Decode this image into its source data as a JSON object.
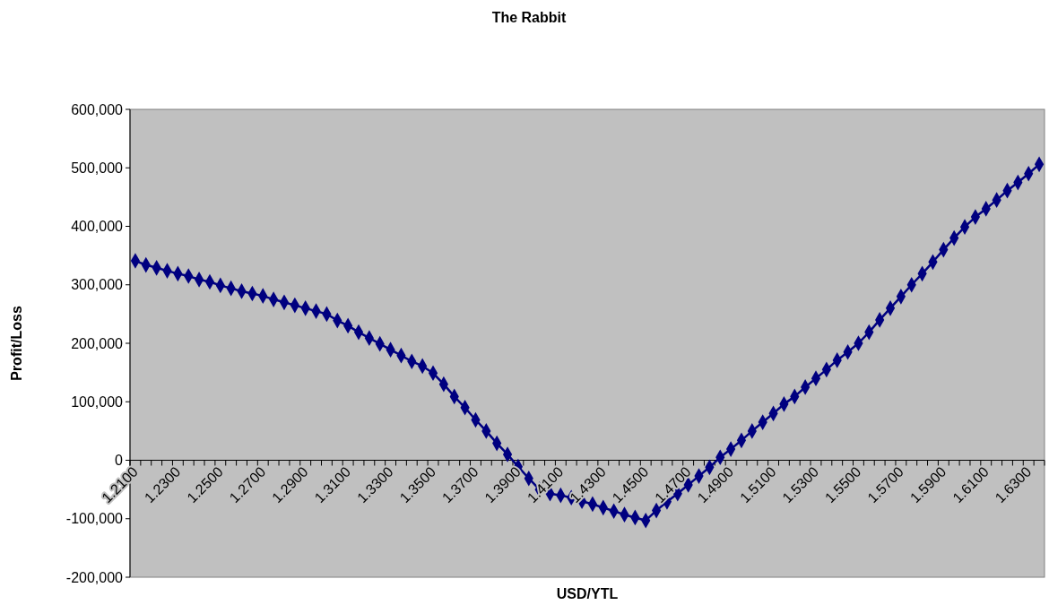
{
  "chart_data": {
    "type": "line",
    "title": "The Rabbit",
    "xlabel": "USD/YTL",
    "ylabel": "Profit/Loss",
    "categories": [
      "1.2100",
      null,
      null,
      null,
      "1.2300",
      null,
      null,
      null,
      "1.2500",
      null,
      null,
      null,
      "1.2700",
      null,
      null,
      null,
      "1.2900",
      null,
      null,
      null,
      "1.3100",
      null,
      null,
      null,
      "1.3300",
      null,
      null,
      null,
      "1.3500",
      null,
      null,
      null,
      "1.3700",
      null,
      null,
      null,
      "1.3900",
      null,
      null,
      null,
      "1.4100",
      null,
      null,
      null,
      "1.4300",
      null,
      null,
      null,
      "1.4500",
      null,
      null,
      null,
      "1.4700",
      null,
      null,
      null,
      "1.4900",
      null,
      null,
      null,
      "1.5100",
      null,
      null,
      null,
      "1.5300",
      null,
      null,
      null,
      "1.5500",
      null,
      null,
      null,
      "1.5700",
      null,
      null,
      null,
      "1.5900",
      null,
      null,
      null,
      "1.6100",
      null,
      null,
      null,
      "1.6300",
      null
    ],
    "series": [
      {
        "color": "#000080",
        "values": [
          341000,
          334000,
          329000,
          324000,
          319000,
          315000,
          309000,
          305000,
          299000,
          294000,
          289000,
          285000,
          281000,
          275000,
          270000,
          265000,
          260000,
          255000,
          250000,
          239000,
          230000,
          219000,
          209000,
          199000,
          189000,
          179000,
          169000,
          161000,
          149000,
          130000,
          109000,
          90000,
          69000,
          50000,
          29000,
          10000,
          -11000,
          -31000,
          -50000,
          -57000,
          -60000,
          -64000,
          -70000,
          -75000,
          -81000,
          -87000,
          -93000,
          -98000,
          -103000,
          -86000,
          -71000,
          -57000,
          -42000,
          -27000,
          -12000,
          5000,
          19000,
          34000,
          50000,
          65000,
          80000,
          96000,
          109000,
          125000,
          140000,
          155000,
          171000,
          185000,
          200000,
          219000,
          240000,
          260000,
          280000,
          300000,
          319000,
          339000,
          360000,
          380000,
          399000,
          416000,
          430000,
          445000,
          461000,
          475000,
          490000,
          506000
        ]
      }
    ],
    "ylim": [
      -200000,
      600000
    ],
    "yticks": [
      {
        "value": -200000,
        "label": "-200,000"
      },
      {
        "value": -100000,
        "label": "-100,000"
      },
      0,
      {
        "value": 100000,
        "label": "100,000"
      },
      {
        "value": 200000,
        "label": "200,000"
      },
      {
        "value": 300000,
        "label": "300,000"
      },
      {
        "value": 400000,
        "label": "400,000"
      },
      {
        "value": 500000,
        "label": "500,000"
      },
      {
        "value": 600000,
        "label": "600,000"
      }
    ],
    "grid": false,
    "marker": "diamond",
    "line_style": "solid"
  }
}
